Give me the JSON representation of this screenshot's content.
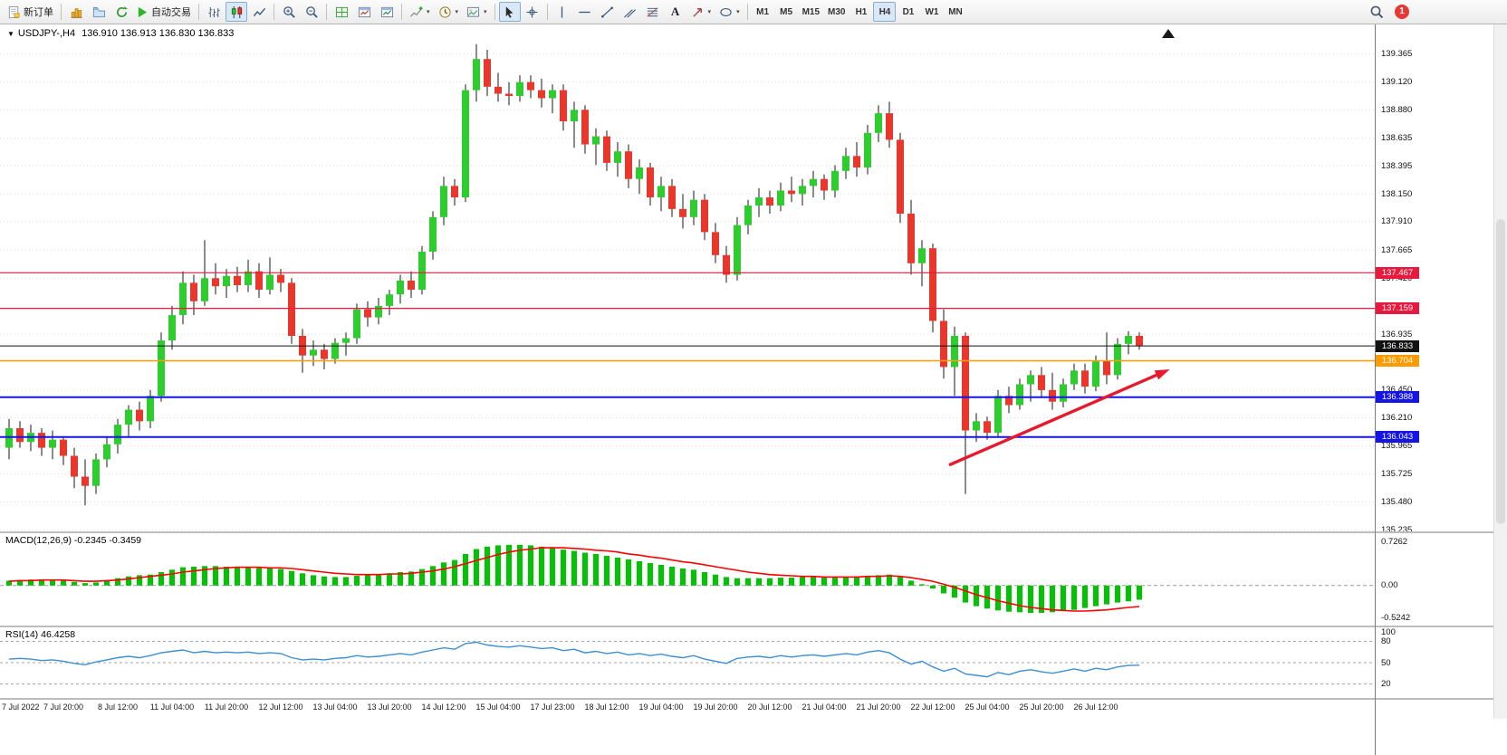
{
  "toolbar": {
    "new_order_label": "新订单",
    "autotrading_label": "自动交易",
    "text_tool_label": "A",
    "timeframes": [
      "M1",
      "M5",
      "M15",
      "M30",
      "H1",
      "H4",
      "D1",
      "W1",
      "MN"
    ],
    "active_timeframe": "H4",
    "notification_count": "1"
  },
  "chart_header": {
    "symbol_title": "USDJPY-,H4",
    "ohlc_text": "136.910 136.913 136.830 136.833"
  },
  "chart_data": {
    "type": "candlestick",
    "symbol": "USDJPY-",
    "timeframe": "H4",
    "price_axis": {
      "max": 139.62,
      "min": 135.225,
      "labels": [
        139.365,
        139.12,
        138.88,
        138.635,
        138.395,
        138.15,
        137.91,
        137.665,
        137.42,
        136.935,
        136.45,
        136.21,
        135.965,
        135.725,
        135.48,
        135.235
      ]
    },
    "colors": {
      "bull": "#2ecc2e",
      "bear": "#e8372c",
      "wick": "#1a1a1a",
      "grid": "#dadada"
    },
    "candles": [
      [
        135.95,
        136.2,
        135.85,
        136.12
      ],
      [
        136.12,
        136.18,
        135.95,
        136.0
      ],
      [
        136.0,
        136.15,
        135.92,
        136.08
      ],
      [
        136.08,
        136.12,
        135.88,
        135.95
      ],
      [
        135.95,
        136.1,
        135.85,
        136.02
      ],
      [
        136.02,
        136.05,
        135.8,
        135.88
      ],
      [
        135.88,
        135.95,
        135.6,
        135.7
      ],
      [
        135.7,
        135.85,
        135.45,
        135.62
      ],
      [
        135.62,
        135.9,
        135.55,
        135.85
      ],
      [
        135.85,
        136.05,
        135.78,
        135.98
      ],
      [
        135.98,
        136.2,
        135.9,
        136.15
      ],
      [
        136.15,
        136.32,
        136.05,
        136.28
      ],
      [
        136.28,
        136.35,
        136.1,
        136.18
      ],
      [
        136.18,
        136.45,
        136.12,
        136.4
      ],
      [
        136.4,
        136.95,
        136.35,
        136.88
      ],
      [
        136.88,
        137.18,
        136.8,
        137.1
      ],
      [
        137.1,
        137.48,
        137.02,
        137.38
      ],
      [
        137.38,
        137.45,
        137.1,
        137.22
      ],
      [
        137.22,
        137.75,
        137.18,
        137.42
      ],
      [
        137.42,
        137.55,
        137.28,
        137.35
      ],
      [
        137.35,
        137.5,
        137.25,
        137.44
      ],
      [
        137.44,
        137.52,
        137.3,
        137.36
      ],
      [
        137.36,
        137.58,
        137.3,
        137.48
      ],
      [
        137.48,
        137.55,
        137.25,
        137.32
      ],
      [
        137.32,
        137.6,
        137.28,
        137.45
      ],
      [
        137.45,
        137.5,
        137.3,
        137.38
      ],
      [
        137.38,
        137.42,
        136.85,
        136.92
      ],
      [
        136.92,
        136.98,
        136.6,
        136.75
      ],
      [
        136.75,
        136.88,
        136.66,
        136.8
      ],
      [
        136.8,
        136.85,
        136.63,
        136.72
      ],
      [
        136.72,
        136.9,
        136.68,
        136.86
      ],
      [
        136.86,
        136.95,
        136.75,
        136.9
      ],
      [
        136.9,
        137.2,
        136.85,
        137.15
      ],
      [
        137.15,
        137.22,
        137.0,
        137.08
      ],
      [
        137.08,
        137.25,
        137.02,
        137.18
      ],
      [
        137.18,
        137.32,
        137.1,
        137.28
      ],
      [
        137.28,
        137.45,
        137.2,
        137.4
      ],
      [
        137.4,
        137.48,
        137.25,
        137.32
      ],
      [
        137.32,
        137.7,
        137.28,
        137.65
      ],
      [
        137.65,
        138.0,
        137.58,
        137.95
      ],
      [
        137.95,
        138.3,
        137.88,
        138.22
      ],
      [
        138.22,
        138.28,
        138.05,
        138.12
      ],
      [
        138.12,
        139.1,
        138.08,
        139.05
      ],
      [
        139.05,
        139.45,
        138.95,
        139.32
      ],
      [
        139.32,
        139.4,
        139.0,
        139.08
      ],
      [
        139.08,
        139.2,
        138.95,
        139.02
      ],
      [
        139.02,
        139.12,
        138.92,
        139.0
      ],
      [
        139.0,
        139.18,
        138.95,
        139.12
      ],
      [
        139.12,
        139.18,
        138.98,
        139.05
      ],
      [
        139.05,
        139.15,
        138.9,
        138.98
      ],
      [
        138.98,
        139.1,
        138.85,
        139.05
      ],
      [
        139.05,
        139.1,
        138.7,
        138.78
      ],
      [
        138.78,
        138.95,
        138.55,
        138.88
      ],
      [
        138.88,
        138.92,
        138.5,
        138.58
      ],
      [
        138.58,
        138.72,
        138.4,
        138.65
      ],
      [
        138.65,
        138.7,
        138.35,
        138.42
      ],
      [
        138.42,
        138.6,
        138.3,
        138.52
      ],
      [
        138.52,
        138.58,
        138.2,
        138.28
      ],
      [
        138.28,
        138.45,
        138.15,
        138.38
      ],
      [
        138.38,
        138.42,
        138.05,
        138.12
      ],
      [
        138.12,
        138.3,
        138.0,
        138.22
      ],
      [
        138.22,
        138.28,
        137.95,
        138.02
      ],
      [
        138.02,
        138.15,
        137.85,
        137.95
      ],
      [
        137.95,
        138.18,
        137.88,
        138.1
      ],
      [
        138.1,
        138.15,
        137.75,
        137.82
      ],
      [
        137.82,
        137.9,
        137.55,
        137.62
      ],
      [
        137.62,
        137.7,
        137.38,
        137.45
      ],
      [
        137.45,
        137.95,
        137.4,
        137.88
      ],
      [
        137.88,
        138.1,
        137.8,
        138.05
      ],
      [
        138.05,
        138.2,
        137.95,
        138.12
      ],
      [
        138.12,
        138.18,
        137.98,
        138.05
      ],
      [
        138.05,
        138.25,
        138.0,
        138.18
      ],
      [
        138.18,
        138.3,
        138.08,
        138.15
      ],
      [
        138.15,
        138.28,
        138.05,
        138.22
      ],
      [
        138.22,
        138.35,
        138.12,
        138.28
      ],
      [
        138.28,
        138.32,
        138.1,
        138.18
      ],
      [
        138.18,
        138.4,
        138.12,
        138.35
      ],
      [
        138.35,
        138.55,
        138.28,
        138.48
      ],
      [
        138.48,
        138.6,
        138.3,
        138.38
      ],
      [
        138.38,
        138.75,
        138.32,
        138.68
      ],
      [
        138.68,
        138.92,
        138.6,
        138.85
      ],
      [
        138.85,
        138.95,
        138.55,
        138.62
      ],
      [
        138.62,
        138.68,
        137.9,
        137.98
      ],
      [
        137.98,
        138.1,
        137.45,
        137.55
      ],
      [
        137.55,
        137.75,
        137.35,
        137.68
      ],
      [
        137.68,
        137.72,
        136.95,
        137.05
      ],
      [
        137.05,
        137.15,
        136.55,
        136.65
      ],
      [
        136.65,
        137.0,
        136.4,
        136.92
      ],
      [
        136.92,
        136.95,
        135.55,
        136.1
      ],
      [
        136.1,
        136.25,
        136.0,
        136.18
      ],
      [
        136.18,
        136.22,
        136.02,
        136.08
      ],
      [
        136.08,
        136.45,
        136.05,
        136.4
      ],
      [
        136.4,
        136.48,
        136.25,
        136.32
      ],
      [
        136.32,
        136.55,
        136.28,
        136.5
      ],
      [
        136.5,
        136.62,
        136.35,
        136.58
      ],
      [
        136.58,
        136.65,
        136.38,
        136.45
      ],
      [
        136.45,
        136.6,
        136.28,
        136.35
      ],
      [
        136.35,
        136.55,
        136.3,
        136.5
      ],
      [
        136.5,
        136.68,
        136.45,
        136.62
      ],
      [
        136.62,
        136.68,
        136.42,
        136.48
      ],
      [
        136.48,
        136.75,
        136.44,
        136.7
      ],
      [
        136.7,
        136.95,
        136.5,
        136.58
      ],
      [
        136.58,
        136.9,
        136.54,
        136.85
      ],
      [
        136.85,
        136.96,
        136.76,
        136.92
      ],
      [
        136.92,
        136.95,
        136.8,
        136.83
      ]
    ],
    "time_labels": [
      "7 Jul 2022",
      "7 Jul 20:00",
      "8 Jul 12:00",
      "11 Jul 04:00",
      "11 Jul 20:00",
      "12 Jul 12:00",
      "13 Jul 04:00",
      "13 Jul 20:00",
      "14 Jul 12:00",
      "15 Jul 04:00",
      "17 Jul 23:00",
      "18 Jul 12:00",
      "19 Jul 04:00",
      "19 Jul 20:00",
      "20 Jul 12:00",
      "21 Jul 04:00",
      "21 Jul 20:00",
      "22 Jul 12:00",
      "25 Jul 04:00",
      "25 Jul 20:00",
      "26 Jul 12:00"
    ],
    "hlines": [
      {
        "price": 137.467,
        "label": "137.467",
        "color": "#e8193c",
        "width": 1.2
      },
      {
        "price": 137.159,
        "label": "137.159",
        "color": "#e8193c",
        "width": 1.2
      },
      {
        "price": 136.833,
        "label": "136.833",
        "color": "#111111",
        "width": 1
      },
      {
        "price": 136.704,
        "label": "136.704",
        "color": "#ff9b00",
        "width": 1.6
      },
      {
        "price": 136.388,
        "label": "136.388",
        "color": "#1414e8",
        "width": 2
      },
      {
        "price": 136.043,
        "label": "136.043",
        "color": "#1414e8",
        "width": 2
      }
    ],
    "trend_arrow": {
      "x1_index": 86.5,
      "price1": 135.8,
      "x2_index": 106.8,
      "price2": 136.63,
      "color": "#e8192c"
    },
    "macd": {
      "label": "MACD(12,26,9)",
      "values_text": "-0.2345 -0.3459",
      "scale_labels": [
        {
          "v": 0.7262,
          "t": "0.7262"
        },
        {
          "v": 0,
          "t": "0.00"
        },
        {
          "v": -0.5242,
          "t": "-0.5242"
        }
      ],
      "histogram_color": "#00c400",
      "signal_color": "#ff0000",
      "histogram": [
        0.08,
        0.09,
        0.1,
        0.1,
        0.09,
        0.08,
        0.06,
        0.04,
        0.05,
        0.08,
        0.12,
        0.15,
        0.17,
        0.18,
        0.22,
        0.26,
        0.3,
        0.31,
        0.32,
        0.32,
        0.31,
        0.3,
        0.3,
        0.29,
        0.28,
        0.27,
        0.24,
        0.2,
        0.17,
        0.15,
        0.14,
        0.14,
        0.16,
        0.17,
        0.18,
        0.2,
        0.22,
        0.23,
        0.27,
        0.32,
        0.38,
        0.42,
        0.52,
        0.6,
        0.64,
        0.66,
        0.67,
        0.67,
        0.66,
        0.64,
        0.62,
        0.59,
        0.57,
        0.54,
        0.52,
        0.49,
        0.46,
        0.43,
        0.4,
        0.37,
        0.34,
        0.31,
        0.28,
        0.26,
        0.22,
        0.18,
        0.14,
        0.12,
        0.12,
        0.12,
        0.12,
        0.13,
        0.13,
        0.14,
        0.14,
        0.13,
        0.13,
        0.14,
        0.15,
        0.16,
        0.17,
        0.18,
        0.14,
        0.08,
        0.02,
        -0.05,
        -0.13,
        -0.2,
        -0.28,
        -0.34,
        -0.38,
        -0.41,
        -0.43,
        -0.44,
        -0.45,
        -0.45,
        -0.44,
        -0.42,
        -0.4,
        -0.37,
        -0.34,
        -0.31,
        -0.28,
        -0.26,
        -0.2345
      ],
      "signal": [
        0.07,
        0.08,
        0.08,
        0.09,
        0.09,
        0.09,
        0.08,
        0.07,
        0.07,
        0.08,
        0.09,
        0.11,
        0.13,
        0.15,
        0.17,
        0.19,
        0.22,
        0.24,
        0.26,
        0.28,
        0.29,
        0.3,
        0.3,
        0.3,
        0.29,
        0.29,
        0.28,
        0.26,
        0.24,
        0.22,
        0.2,
        0.19,
        0.18,
        0.18,
        0.18,
        0.19,
        0.19,
        0.2,
        0.22,
        0.24,
        0.27,
        0.31,
        0.36,
        0.41,
        0.46,
        0.51,
        0.55,
        0.58,
        0.6,
        0.62,
        0.62,
        0.62,
        0.61,
        0.6,
        0.58,
        0.57,
        0.55,
        0.52,
        0.5,
        0.47,
        0.45,
        0.42,
        0.39,
        0.37,
        0.34,
        0.31,
        0.28,
        0.25,
        0.22,
        0.2,
        0.18,
        0.17,
        0.16,
        0.15,
        0.15,
        0.14,
        0.14,
        0.14,
        0.14,
        0.15,
        0.15,
        0.16,
        0.15,
        0.13,
        0.1,
        0.07,
        0.02,
        -0.03,
        -0.09,
        -0.15,
        -0.2,
        -0.25,
        -0.29,
        -0.33,
        -0.36,
        -0.38,
        -0.4,
        -0.41,
        -0.42,
        -0.42,
        -0.41,
        -0.4,
        -0.38,
        -0.36,
        -0.3459
      ]
    },
    "rsi": {
      "label": "RSI(14)",
      "value_text": "46.4258",
      "line_color": "#3c8fd2",
      "levels": [
        80,
        50,
        20
      ],
      "scale_labels": [
        {
          "v": 100,
          "t": "100"
        },
        {
          "v": 80,
          "t": "80"
        },
        {
          "v": 50,
          "t": "50"
        },
        {
          "v": 20,
          "t": "20"
        }
      ],
      "values": [
        55,
        56,
        55,
        53,
        54,
        52,
        49,
        47,
        51,
        54,
        57,
        59,
        57,
        60,
        64,
        66,
        68,
        64,
        66,
        64,
        65,
        64,
        65,
        63,
        64,
        63,
        57,
        54,
        55,
        54,
        56,
        57,
        60,
        58,
        59,
        61,
        63,
        61,
        65,
        68,
        71,
        69,
        77,
        79,
        75,
        73,
        72,
        74,
        72,
        70,
        71,
        67,
        69,
        64,
        66,
        63,
        65,
        61,
        63,
        60,
        62,
        59,
        57,
        60,
        55,
        52,
        49,
        56,
        58,
        59,
        57,
        60,
        58,
        60,
        61,
        59,
        61,
        63,
        61,
        65,
        67,
        64,
        55,
        48,
        52,
        44,
        38,
        42,
        34,
        32,
        30,
        36,
        33,
        38,
        40,
        37,
        35,
        38,
        41,
        38,
        42,
        40,
        44,
        46,
        46.4258
      ]
    }
  }
}
